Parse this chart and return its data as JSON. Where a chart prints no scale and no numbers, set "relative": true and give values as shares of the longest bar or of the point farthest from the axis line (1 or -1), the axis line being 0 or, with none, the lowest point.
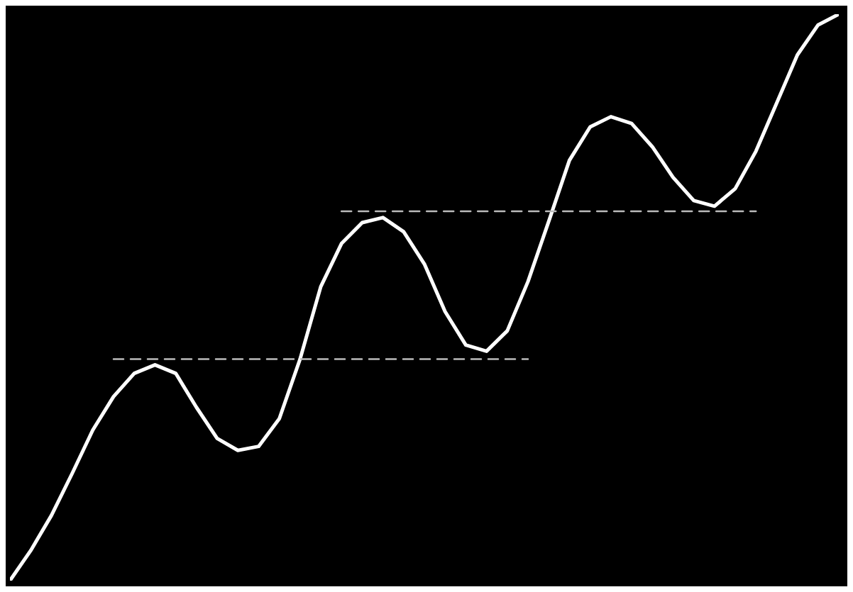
{
  "chart_data": {
    "type": "line",
    "relative": true,
    "marker": "none",
    "legend": false,
    "grid": false,
    "categories": [
      null,
      null,
      null,
      null,
      null,
      null,
      null,
      null,
      null,
      null,
      null,
      null,
      null,
      null,
      null,
      null,
      null,
      null,
      null,
      null,
      null,
      null,
      null,
      null,
      null,
      null,
      null,
      null,
      null,
      null,
      null,
      null,
      null,
      null,
      null,
      null,
      null,
      null,
      null,
      null,
      null
    ],
    "series": [
      {
        "color": "#ffffff",
        "line_style": "solid",
        "values": [
          0,
          0.053,
          0.115,
          0.189,
          0.266,
          0.325,
          0.366,
          0.381,
          0.366,
          0.306,
          0.251,
          0.23,
          0.237,
          0.286,
          0.391,
          0.519,
          0.595,
          0.632,
          0.641,
          0.616,
          0.559,
          0.475,
          0.416,
          0.405,
          0.441,
          0.528,
          0.634,
          0.742,
          0.801,
          0.819,
          0.807,
          0.766,
          0.712,
          0.671,
          0.661,
          0.692,
          0.758,
          0.843,
          0.928,
          0.981,
          1
        ]
      },
      {
        "color": "#bbbbbb",
        "line_style": "dashed",
        "values": [
          null,
          null,
          null,
          null,
          null,
          0.391,
          0.391,
          0.391,
          0.391,
          0.391,
          0.391,
          0.391,
          0.391,
          0.391,
          0.391,
          0.391,
          0.391,
          0.391,
          0.391,
          0.391,
          0.391,
          0.391,
          0.391,
          0.391,
          0.391,
          0.391,
          null,
          null,
          null,
          null,
          null,
          null,
          null,
          null,
          null,
          null,
          null,
          null,
          null,
          null,
          null
        ]
      },
      {
        "color": "#bbbbbb",
        "line_style": "dashed",
        "values": [
          null,
          null,
          null,
          null,
          null,
          null,
          null,
          null,
          null,
          null,
          null,
          null,
          null,
          null,
          null,
          null,
          0.652,
          0.652,
          0.652,
          0.652,
          0.652,
          0.652,
          0.652,
          0.652,
          0.652,
          0.652,
          0.652,
          0.652,
          0.652,
          0.652,
          0.652,
          0.652,
          0.652,
          0.652,
          0.652,
          0.652,
          0.652,
          null,
          null,
          null,
          null
        ]
      }
    ]
  }
}
